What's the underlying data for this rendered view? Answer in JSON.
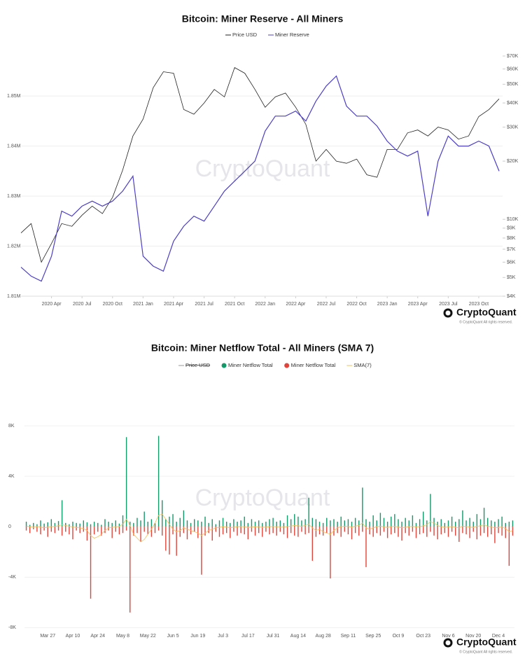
{
  "chart_data": [
    {
      "type": "line",
      "title": "Bitcoin: Miner Reserve - All Miners",
      "watermark": "CryptoQuant",
      "brand": "CryptoQuant",
      "copyright": "© CryptoQuant All rights reserved.",
      "x": [
        "2020-01",
        "2020-02",
        "2020-03",
        "2020-04",
        "2020-05",
        "2020-06",
        "2020-07",
        "2020-08",
        "2020-09",
        "2020-10",
        "2020-11",
        "2020-12",
        "2021-01",
        "2021-02",
        "2021-03",
        "2021-04",
        "2021-05",
        "2021-06",
        "2021-07",
        "2021-08",
        "2021-09",
        "2021-10",
        "2021-11",
        "2021-12",
        "2022-01",
        "2022-02",
        "2022-03",
        "2022-04",
        "2022-05",
        "2022-06",
        "2022-07",
        "2022-08",
        "2022-09",
        "2022-10",
        "2022-11",
        "2022-12",
        "2023-01",
        "2023-02",
        "2023-03",
        "2023-04",
        "2023-05",
        "2023-06",
        "2023-07",
        "2023-08",
        "2023-09",
        "2023-10",
        "2023-11",
        "2023-12"
      ],
      "xlim": [
        "2020-01",
        "2023-12"
      ],
      "xticks": [
        {
          "value": "2020-04",
          "label": "2020 Apr"
        },
        {
          "value": "2020-07",
          "label": "2020 Jul"
        },
        {
          "value": "2020-10",
          "label": "2020 Oct"
        },
        {
          "value": "2021-01",
          "label": "2021 Jan"
        },
        {
          "value": "2021-04",
          "label": "2021 Apr"
        },
        {
          "value": "2021-07",
          "label": "2021 Jul"
        },
        {
          "value": "2021-10",
          "label": "2021 Oct"
        },
        {
          "value": "2022-01",
          "label": "2022 Jan"
        },
        {
          "value": "2022-04",
          "label": "2022 Apr"
        },
        {
          "value": "2022-07",
          "label": "2022 Jul"
        },
        {
          "value": "2022-10",
          "label": "2022 Oct"
        },
        {
          "value": "2023-01",
          "label": "2023 Jan"
        },
        {
          "value": "2023-04",
          "label": "2023 Apr"
        },
        {
          "value": "2023-07",
          "label": "2023 Jul"
        },
        {
          "value": "2023-10",
          "label": "2023 Oct"
        }
      ],
      "ylim": [
        1810000,
        1858000
      ],
      "yticks": [
        {
          "value": 1810000,
          "label": "1.81M"
        },
        {
          "value": 1820000,
          "label": "1.82M"
        },
        {
          "value": 1830000,
          "label": "1.83M"
        },
        {
          "value": 1840000,
          "label": "1.84M"
        },
        {
          "value": 1850000,
          "label": "1.85M"
        }
      ],
      "y2lim": [
        4000,
        70000
      ],
      "y2scale": "log",
      "y2ticks": [
        {
          "value": 4000,
          "label": "$4K"
        },
        {
          "value": 5000,
          "label": "$5K"
        },
        {
          "value": 6000,
          "label": "$6K"
        },
        {
          "value": 7000,
          "label": "$7K"
        },
        {
          "value": 8000,
          "label": "$8K"
        },
        {
          "value": 9000,
          "label": "$9K"
        },
        {
          "value": 10000,
          "label": "$10K"
        },
        {
          "value": 20000,
          "label": "$20K"
        },
        {
          "value": 30000,
          "label": "$30K"
        },
        {
          "value": 40000,
          "label": "$40K"
        },
        {
          "value": 50000,
          "label": "$50K"
        },
        {
          "value": 60000,
          "label": "$60K"
        },
        {
          "value": 70000,
          "label": "$70K"
        }
      ],
      "grid": true,
      "series": [
        {
          "name": "Price USD",
          "color": "#222222",
          "axis": "y2",
          "values": [
            8500,
            9500,
            6000,
            7500,
            9500,
            9200,
            10500,
            11700,
            10700,
            13000,
            18000,
            27000,
            33000,
            48000,
            58000,
            57000,
            37000,
            35000,
            40000,
            47000,
            43000,
            61000,
            57000,
            47000,
            38000,
            43000,
            45000,
            38000,
            31000,
            20000,
            23000,
            20000,
            19500,
            20500,
            17000,
            16500,
            23000,
            23000,
            28000,
            29000,
            27000,
            30000,
            29000,
            26000,
            27000,
            34000,
            37000,
            42000
          ]
        },
        {
          "name": "Miner Reserve",
          "color": "#4d3fc4",
          "values": [
            1815800,
            1814000,
            1813000,
            1818000,
            1827000,
            1826000,
            1828000,
            1829000,
            1828000,
            1829000,
            1831000,
            1834000,
            1818000,
            1816000,
            1815000,
            1821000,
            1824000,
            1826000,
            1825000,
            1828000,
            1831000,
            1833000,
            1835000,
            1837000,
            1843000,
            1846000,
            1846000,
            1847000,
            1845000,
            1849000,
            1852000,
            1854000,
            1848000,
            1846000,
            1846000,
            1844000,
            1841000,
            1839000,
            1838000,
            1839000,
            1826000,
            1837000,
            1842000,
            1840000,
            1840000,
            1841000,
            1840000,
            1835000
          ]
        }
      ]
    },
    {
      "type": "bar",
      "title": "Bitcoin: Miner Netflow Total - All Miners (SMA 7)",
      "watermark": "CryptoQuant",
      "brand": "CryptoQuant",
      "copyright": "© CryptoQuant All rights reserved.",
      "categories": [
        null,
        null,
        null,
        null,
        null,
        null,
        "Mar 27",
        null,
        null,
        null,
        null,
        null,
        null,
        "Apr 10",
        null,
        null,
        null,
        null,
        null,
        null,
        "Apr 24",
        null,
        null,
        null,
        null,
        null,
        null,
        "May 8",
        null,
        null,
        null,
        null,
        null,
        null,
        "May 22",
        null,
        null,
        null,
        null,
        null,
        null,
        "Jun 5",
        null,
        null,
        null,
        null,
        null,
        null,
        "Jun 19",
        null,
        null,
        null,
        null,
        null,
        null,
        "Jul 3",
        null,
        null,
        null,
        null,
        null,
        null,
        "Jul 17",
        null,
        null,
        null,
        null,
        null,
        null,
        "Jul 31",
        null,
        null,
        null,
        null,
        null,
        null,
        "Aug 14",
        null,
        null,
        null,
        null,
        null,
        null,
        "Aug 28",
        null,
        null,
        null,
        null,
        null,
        null,
        "Sep 11",
        null,
        null,
        null,
        null,
        null,
        null,
        "Sep 25",
        null,
        null,
        null,
        null,
        null,
        null,
        "Oct 9",
        null,
        null,
        null,
        null,
        null,
        null,
        "Oct 23",
        null,
        null,
        null,
        null,
        null,
        null,
        "Nov 6",
        null,
        null,
        null,
        null,
        null,
        null,
        "Nov 20",
        null,
        null,
        null,
        null,
        null,
        null,
        "Dec 4",
        null,
        null,
        null,
        null
      ],
      "ylim": [
        -8200,
        11500
      ],
      "yticks": [
        {
          "value": -8000,
          "label": "-8K"
        },
        {
          "value": -4000,
          "label": "-4K"
        },
        0,
        {
          "value": 4000,
          "label": "4K"
        },
        {
          "value": 8000,
          "label": "8K"
        }
      ],
      "grid": true,
      "series": [
        {
          "name": "Price USD",
          "color": "#999999",
          "hidden": true
        },
        {
          "name": "Miner Netflow Total",
          "color": "#139a6a",
          "values": [
            400,
            150,
            300,
            200,
            500,
            250,
            350,
            600,
            300,
            450,
            2100,
            300,
            200,
            400,
            300,
            250,
            500,
            350,
            200,
            400,
            300,
            150,
            600,
            400,
            300,
            500,
            250,
            900,
            7100,
            400,
            300,
            700,
            500,
            1200,
            400,
            600,
            300,
            7200,
            2100,
            600,
            800,
            1000,
            400,
            700,
            1300,
            500,
            300,
            600,
            500,
            400,
            800,
            300,
            600,
            200,
            500,
            700,
            400,
            300,
            600,
            400,
            500,
            800,
            300,
            600,
            400,
            500,
            300,
            400,
            600,
            700,
            400,
            500,
            300,
            900,
            600,
            1000,
            800,
            500,
            600,
            2300,
            700,
            600,
            400,
            300,
            700,
            500,
            600,
            400,
            800,
            500,
            600,
            400,
            700,
            500,
            3100,
            600,
            400,
            900,
            500,
            1100,
            700,
            400,
            800,
            1000,
            600,
            400,
            700,
            500,
            900,
            300,
            600,
            1200,
            500,
            2600,
            700,
            400,
            600,
            300,
            500,
            800,
            400,
            600,
            1300,
            500,
            700,
            400,
            1000,
            600,
            1500,
            700,
            500,
            400,
            600,
            800,
            300,
            400,
            500
          ]
        },
        {
          "name": "Miner Netflow Total",
          "color": "#e0443a",
          "values": [
            -300,
            -500,
            -200,
            -400,
            -600,
            -300,
            -800,
            -400,
            -500,
            -300,
            -700,
            -400,
            -600,
            -1000,
            -300,
            -500,
            -400,
            -1100,
            -5700,
            -600,
            -400,
            -700,
            -500,
            -300,
            -900,
            -400,
            -600,
            -500,
            -300,
            -6800,
            -700,
            -500,
            -1200,
            -400,
            -600,
            -800,
            -500,
            -300,
            -700,
            -1900,
            -2200,
            -600,
            -2300,
            -800,
            -500,
            -1000,
            -600,
            -400,
            -900,
            -3800,
            -700,
            -500,
            -1100,
            -400,
            -800,
            -600,
            -500,
            -900,
            -400,
            -700,
            -500,
            -600,
            -1000,
            -400,
            -700,
            -500,
            -800,
            -400,
            -600,
            -500,
            -700,
            -400,
            -600,
            -900,
            -500,
            -700,
            -800,
            -400,
            -600,
            -500,
            -2700,
            -800,
            -600,
            -700,
            -500,
            -4100,
            -700,
            -500,
            -800,
            -400,
            -600,
            -1000,
            -500,
            -700,
            -400,
            -3200,
            -600,
            -800,
            -500,
            -700,
            -400,
            -900,
            -600,
            -500,
            -800,
            -1100,
            -500,
            -700,
            -400,
            -900,
            -600,
            -500,
            -800,
            -400,
            -700,
            -1000,
            -600,
            -500,
            -800,
            -400,
            -700,
            -1200,
            -500,
            -600,
            -900,
            -400,
            -1000,
            -700,
            -500,
            -800,
            -600,
            -1300,
            -500,
            -700,
            -900,
            -3100,
            -700
          ]
        },
        {
          "name": "SMA(7)",
          "color": "#f2c15c",
          "type": "line",
          "values": [
            50,
            0,
            -50,
            20,
            -30,
            -80,
            -40,
            0,
            30,
            80,
            150,
            100,
            40,
            -20,
            -60,
            -100,
            -150,
            -300,
            -700,
            -900,
            -800,
            -600,
            -300,
            -100,
            -50,
            -20,
            30,
            200,
            600,
            100,
            -600,
            -900,
            -1200,
            -1000,
            -600,
            -200,
            300,
            900,
            1000,
            600,
            200,
            -200,
            -400,
            -300,
            -100,
            -200,
            -300,
            -400,
            -500,
            -700,
            -500,
            -300,
            -200,
            -100,
            -50,
            0,
            -30,
            -80,
            -40,
            0,
            20,
            -10,
            -60,
            -30,
            0,
            -20,
            -50,
            -30,
            0,
            20,
            -10,
            -40,
            -20,
            10,
            60,
            100,
            80,
            40,
            100,
            200,
            -100,
            -300,
            -200,
            -400,
            -500,
            -600,
            -300,
            -100,
            0,
            50,
            20,
            -40,
            60,
            100,
            300,
            -100,
            -200,
            -100,
            0,
            50,
            -20,
            -60,
            10,
            40,
            -30,
            -80,
            -40,
            0,
            30,
            -20,
            10,
            80,
            150,
            400,
            300,
            100,
            0,
            -50,
            -20,
            10,
            -40,
            -100,
            60,
            20,
            -30,
            -60,
            40,
            80,
            150,
            60,
            -20,
            -100,
            -60,
            -20,
            -150,
            -400,
            -300
          ]
        }
      ]
    }
  ]
}
